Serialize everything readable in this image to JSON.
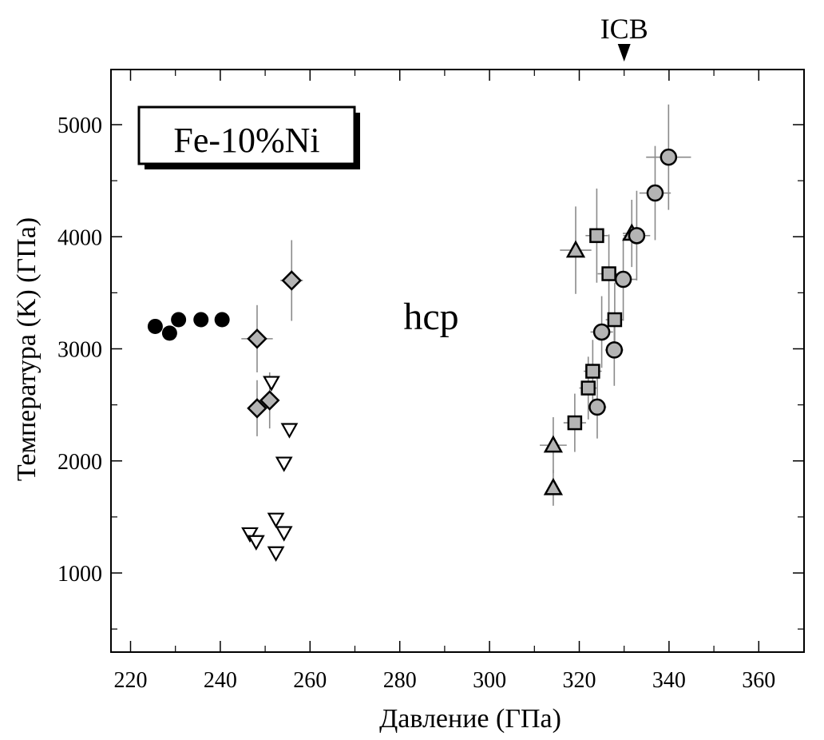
{
  "chart_data": {
    "type": "scatter",
    "xlabel": "Давление (ГПа)",
    "ylabel": "Температура (K) (ГПа)",
    "xlim": [
      210,
      362
    ],
    "ylim": [
      200,
      5500
    ],
    "x_ticks": [
      220,
      240,
      260,
      280,
      300,
      320,
      340,
      360
    ],
    "y_ticks": [
      1000,
      2000,
      3000,
      4000,
      5000
    ],
    "x_tick_labels": [
      "220",
      "240",
      "260",
      "280",
      "300",
      "320",
      "340",
      "360"
    ],
    "y_tick_labels": [
      "1000",
      "2000",
      "3000",
      "4000",
      "5000"
    ],
    "legend_box_text": "Fe-10%Ni",
    "annotations": [
      {
        "text": "hcp",
        "x": 287,
        "y": 3290
      },
      {
        "text": "ICB",
        "x": 330,
        "y": 5500,
        "marker": "triangle-down"
      }
    ],
    "series": [
      {
        "marker": "filled-circle",
        "points": [
          {
            "x": 225.5,
            "y": 3200
          },
          {
            "x": 228.7,
            "y": 3140
          },
          {
            "x": 230.7,
            "y": 3260
          },
          {
            "x": 235.7,
            "y": 3260
          },
          {
            "x": 240.4,
            "y": 3260
          }
        ]
      },
      {
        "marker": "gray-diamond",
        "points": [
          {
            "x": 248.2,
            "y": 3090,
            "xerr": 3.5,
            "yerr": 300
          },
          {
            "x": 255.9,
            "y": 3610,
            "xerr": 2.5,
            "yerr": 360
          },
          {
            "x": 248.2,
            "y": 2470,
            "xerr": 2,
            "yerr": 250
          },
          {
            "x": 251.0,
            "y": 2540,
            "xerr": 2,
            "yerr": 250
          }
        ]
      },
      {
        "marker": "open-triangle-down",
        "points": [
          {
            "x": 251.4,
            "y": 2700
          },
          {
            "x": 255.4,
            "y": 2280
          },
          {
            "x": 254.2,
            "y": 1980
          },
          {
            "x": 252.4,
            "y": 1480
          },
          {
            "x": 246.6,
            "y": 1350
          },
          {
            "x": 248.0,
            "y": 1280
          },
          {
            "x": 254.2,
            "y": 1360
          },
          {
            "x": 252.4,
            "y": 1180
          }
        ]
      },
      {
        "marker": "gray-triangle-up",
        "points": [
          {
            "x": 314.2,
            "y": 2140,
            "xerr": 3,
            "yerr": 250
          },
          {
            "x": 314.2,
            "y": 1760,
            "xerr": 0,
            "yerr": 160
          },
          {
            "x": 319.2,
            "y": 3880,
            "xerr": 3.5,
            "yerr": 390
          },
          {
            "x": 331.7,
            "y": 4030,
            "xerr": 2,
            "yerr": 300
          }
        ]
      },
      {
        "marker": "gray-square",
        "points": [
          {
            "x": 323.9,
            "y": 4010,
            "xerr": 2.5,
            "yerr": 420
          },
          {
            "x": 326.6,
            "y": 3670,
            "xerr": 2.5,
            "yerr": 350
          },
          {
            "x": 327.9,
            "y": 3260,
            "xerr": 2,
            "yerr": 330
          },
          {
            "x": 323.0,
            "y": 2800,
            "xerr": 2,
            "yerr": 280
          },
          {
            "x": 322.0,
            "y": 2650,
            "xerr": 2,
            "yerr": 280
          },
          {
            "x": 319.0,
            "y": 2340,
            "xerr": 2.5,
            "yerr": 260
          }
        ]
      },
      {
        "marker": "gray-circle",
        "points": [
          {
            "x": 339.9,
            "y": 4710,
            "xerr": 5,
            "yerr": 470
          },
          {
            "x": 336.9,
            "y": 4390,
            "xerr": 3.5,
            "yerr": 420
          },
          {
            "x": 332.8,
            "y": 4010,
            "xerr": 3,
            "yerr": 400
          },
          {
            "x": 329.8,
            "y": 3620,
            "xerr": 3,
            "yerr": 370
          },
          {
            "x": 325.0,
            "y": 3150,
            "xerr": 2.5,
            "yerr": 320
          },
          {
            "x": 327.8,
            "y": 2990,
            "xerr": 2,
            "yerr": 320
          },
          {
            "x": 324.0,
            "y": 2480,
            "xerr": 2,
            "yerr": 280
          }
        ]
      }
    ]
  }
}
